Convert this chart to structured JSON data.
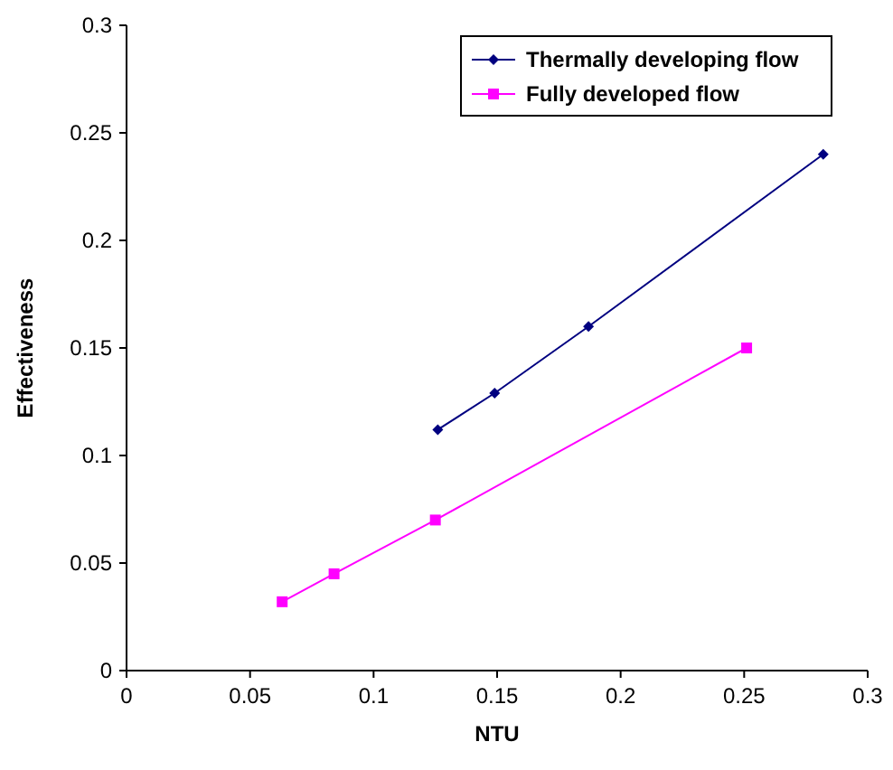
{
  "chart_data": {
    "type": "line",
    "xlabel": "NTU",
    "ylabel": "Effectiveness",
    "xlim": [
      0,
      0.3
    ],
    "ylim": [
      0,
      0.3
    ],
    "xticks": [
      0,
      0.05,
      0.1,
      0.15,
      0.2,
      0.25,
      0.3
    ],
    "yticks": [
      0,
      0.05,
      0.1,
      0.15,
      0.2,
      0.25,
      0.3
    ],
    "grid": false,
    "legend": "top right",
    "series": [
      {
        "name": "Thermally developing flow",
        "color": "#000080",
        "marker": "diamond",
        "x": [
          0.126,
          0.149,
          0.187,
          0.282
        ],
        "values": [
          0.112,
          0.129,
          0.16,
          0.24
        ]
      },
      {
        "name": "Fully developed flow",
        "color": "#ff00ff",
        "marker": "square",
        "x": [
          0.063,
          0.084,
          0.125,
          0.251
        ],
        "values": [
          0.032,
          0.045,
          0.07,
          0.15
        ]
      }
    ]
  }
}
